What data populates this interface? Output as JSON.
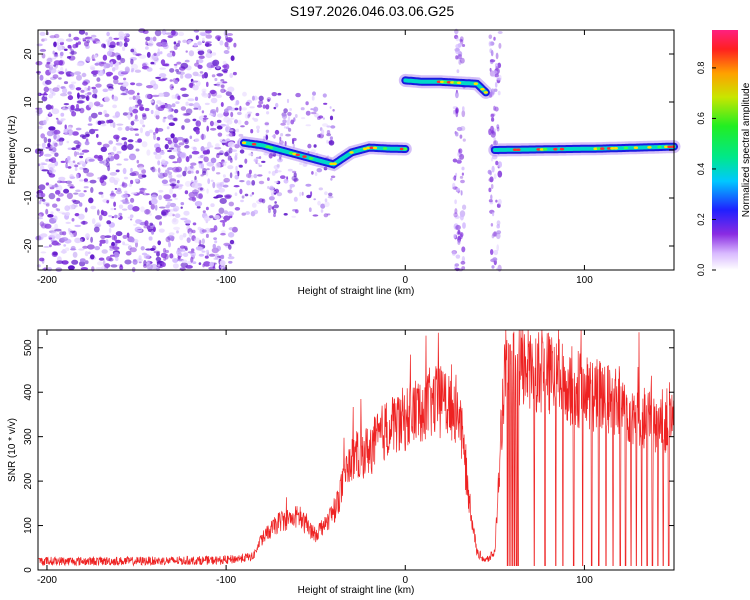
{
  "title": "S197.2026.046.03.06.G25",
  "colors": {
    "snr_line": "#ee2222",
    "axis": "#000000",
    "background": "#ffffff"
  },
  "chart_data": [
    {
      "type": "heatmap",
      "name": "spectrogram",
      "xlabel": "Height of straight line (km)",
      "ylabel": "Frequency (Hz)",
      "xlim": [
        -205,
        150
      ],
      "ylim": [
        -25,
        25
      ],
      "x_ticks": [
        -200,
        -100,
        0,
        100
      ],
      "y_ticks": [
        -20,
        -10,
        0,
        10,
        20
      ],
      "noise_region": [
        -205,
        -95
      ],
      "segments": [
        {
          "label": "descending trace",
          "x": [
            -90,
            -80,
            -70,
            -60,
            -50,
            -40,
            -30,
            -20,
            -10,
            0
          ],
          "freq": [
            1.5,
            1,
            0,
            -1,
            -2,
            -3,
            -0.5,
            0.5,
            0.3,
            0.2
          ]
        },
        {
          "label": "upper trace",
          "x": [
            0,
            10,
            20,
            30,
            40,
            45
          ],
          "freq": [
            14.5,
            14.2,
            14.2,
            14.0,
            13.8,
            12
          ]
        },
        {
          "label": "right trace",
          "x": [
            50,
            70,
            90,
            110,
            130,
            150
          ],
          "freq": [
            0.0,
            0.1,
            0.2,
            0.3,
            0.5,
            0.7
          ]
        }
      ],
      "vertical_streaks": [
        30,
        50
      ],
      "colorbar": {
        "label": "Normalized spectral amplitude",
        "range": [
          0,
          0.95
        ],
        "ticks": [
          "0.0",
          "0.2",
          "0.4",
          "0.6",
          "0.8"
        ]
      }
    },
    {
      "type": "line",
      "name": "snr",
      "series_name": "SNR",
      "xlabel": "Height of straight line (km)",
      "ylabel": "SNR (10 * v/v)",
      "xlim": [
        -205,
        150
      ],
      "ylim": [
        0,
        540
      ],
      "x_ticks": [
        -200,
        -100,
        0,
        100
      ],
      "y_ticks": [
        0,
        100,
        200,
        300,
        400,
        500
      ],
      "x": [
        -205,
        -150,
        -100,
        -85,
        -80,
        -70,
        -60,
        -50,
        -40,
        -30,
        -20,
        -10,
        0,
        10,
        20,
        30,
        35,
        40,
        45,
        50,
        55,
        60,
        70,
        80,
        90,
        100,
        110,
        120,
        130,
        140,
        150
      ],
      "values": [
        20,
        20,
        22,
        30,
        70,
        110,
        120,
        80,
        130,
        250,
        270,
        320,
        340,
        370,
        380,
        360,
        180,
        40,
        20,
        40,
        420,
        440,
        460,
        440,
        420,
        400,
        390,
        370,
        350,
        330,
        340
      ],
      "dropouts": [
        57,
        58,
        59,
        60,
        61,
        62,
        63,
        72,
        78,
        84,
        88,
        94,
        99,
        104,
        108,
        112,
        116,
        120,
        123,
        126,
        129,
        132,
        135,
        138,
        141,
        144,
        147
      ]
    }
  ]
}
